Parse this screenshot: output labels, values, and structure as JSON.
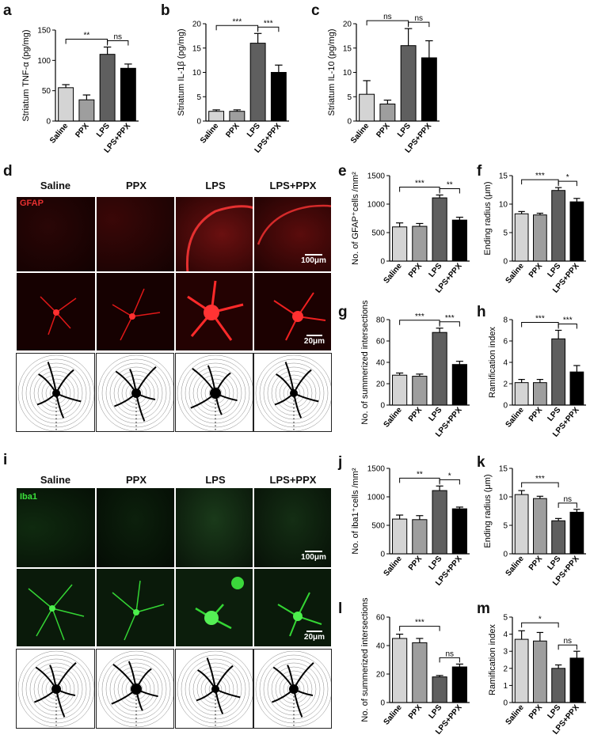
{
  "panel_labels": {
    "a": "a",
    "b": "b",
    "c": "c",
    "d": "d",
    "e": "e",
    "f": "f",
    "g": "g",
    "h": "h",
    "i": "i",
    "j": "j",
    "k": "k",
    "l": "l",
    "m": "m"
  },
  "group_labels": [
    "Saline",
    "PPX",
    "LPS",
    "LPS+PPX"
  ],
  "image_panels": {
    "d": {
      "columns": [
        "Saline",
        "PPX",
        "LPS",
        "LPS+PPX"
      ],
      "stain": "GFAP",
      "scale_top": "100μm",
      "scale_mid": "20μm"
    },
    "i": {
      "columns": [
        "Saline",
        "PPX",
        "LPS",
        "LPS+PPX"
      ],
      "stain": "Iba1",
      "scale_top": "100μm",
      "scale_mid": "20μm"
    }
  },
  "colors": {
    "saline": "#d4d4d4",
    "ppx": "#9e9e9e",
    "lps": "#5f5f5f",
    "lpsppx": "#000000",
    "gfap": "#e01818",
    "iba1": "#2fd12f"
  },
  "chart_data": [
    {
      "id": "a",
      "type": "bar",
      "categories": [
        "Saline",
        "PPX",
        "LPS",
        "LPS+PPX"
      ],
      "values": [
        55,
        35,
        110,
        87
      ],
      "errors": [
        5,
        8,
        12,
        7
      ],
      "ylabel": "Striatum TNF-α (pg/mg)",
      "ylim": [
        0,
        150
      ],
      "yticks": [
        0,
        50,
        100,
        150
      ],
      "sig": [
        {
          "from": 0,
          "to": 2,
          "label": "**"
        },
        {
          "from": 2,
          "to": 3,
          "label": "ns"
        }
      ]
    },
    {
      "id": "b",
      "type": "bar",
      "categories": [
        "Saline",
        "PPX",
        "LPS",
        "LPS+PPX"
      ],
      "values": [
        2,
        2,
        16,
        10
      ],
      "errors": [
        0.3,
        0.3,
        2,
        1.5
      ],
      "ylabel": "Striatum IL-1β (pg/mg)",
      "ylim": [
        0,
        20
      ],
      "yticks": [
        0,
        5,
        10,
        15,
        20
      ],
      "sig": [
        {
          "from": 0,
          "to": 2,
          "label": "***"
        },
        {
          "from": 2,
          "to": 3,
          "label": "***"
        }
      ]
    },
    {
      "id": "c",
      "type": "bar",
      "categories": [
        "Saline",
        "PPX",
        "LPS",
        "LPS+PPX"
      ],
      "values": [
        5.5,
        3.5,
        15.5,
        13
      ],
      "errors": [
        2.8,
        0.8,
        3.5,
        3.5
      ],
      "ylabel": "Striatum IL-10 (pg/mg)",
      "ylim": [
        0,
        20
      ],
      "yticks": [
        0,
        5,
        10,
        15,
        20
      ],
      "sig": [
        {
          "from": 0,
          "to": 2,
          "label": "ns"
        },
        {
          "from": 2,
          "to": 3,
          "label": "ns"
        }
      ]
    },
    {
      "id": "e",
      "type": "bar",
      "categories": [
        "Saline",
        "PPX",
        "LPS",
        "LPS+PPX"
      ],
      "values": [
        600,
        610,
        1110,
        720
      ],
      "errors": [
        70,
        50,
        50,
        50
      ],
      "ylabel": "No. of GFAP⁺cells /mm²",
      "ylim": [
        0,
        1500
      ],
      "yticks": [
        0,
        500,
        1000,
        1500
      ],
      "sig": [
        {
          "from": 0,
          "to": 2,
          "label": "***"
        },
        {
          "from": 2,
          "to": 3,
          "label": "**"
        }
      ]
    },
    {
      "id": "f",
      "type": "bar",
      "categories": [
        "Saline",
        "PPX",
        "LPS",
        "LPS+PPX"
      ],
      "values": [
        8.3,
        8.1,
        12.4,
        10.4
      ],
      "errors": [
        0.4,
        0.3,
        0.5,
        0.6
      ],
      "ylabel": "Ending radius (μm)",
      "ylim": [
        0,
        15
      ],
      "yticks": [
        0,
        5,
        10,
        15
      ],
      "sig": [
        {
          "from": 0,
          "to": 2,
          "label": "***"
        },
        {
          "from": 2,
          "to": 3,
          "label": "*"
        }
      ]
    },
    {
      "id": "g",
      "type": "bar",
      "categories": [
        "Saline",
        "PPX",
        "LPS",
        "LPS+PPX"
      ],
      "values": [
        28,
        27,
        68,
        38
      ],
      "errors": [
        2,
        2,
        4,
        3
      ],
      "ylabel": "No. of summerized intersections",
      "ylim": [
        0,
        80
      ],
      "yticks": [
        0,
        20,
        40,
        60,
        80
      ],
      "sig": [
        {
          "from": 0,
          "to": 2,
          "label": "***"
        },
        {
          "from": 2,
          "to": 3,
          "label": "***"
        }
      ]
    },
    {
      "id": "h",
      "type": "bar",
      "categories": [
        "Saline",
        "PPX",
        "LPS",
        "LPS+PPX"
      ],
      "values": [
        2.1,
        2.1,
        6.2,
        3.1
      ],
      "errors": [
        0.3,
        0.3,
        0.8,
        0.6
      ],
      "ylabel": "Ramification index",
      "ylim": [
        0,
        8
      ],
      "yticks": [
        0,
        2,
        4,
        6,
        8
      ],
      "sig": [
        {
          "from": 0,
          "to": 2,
          "label": "***"
        },
        {
          "from": 2,
          "to": 3,
          "label": "***"
        }
      ]
    },
    {
      "id": "j",
      "type": "bar",
      "categories": [
        "Saline",
        "PPX",
        "LPS",
        "LPS+PPX"
      ],
      "values": [
        610,
        600,
        1110,
        790
      ],
      "errors": [
        70,
        70,
        80,
        30
      ],
      "ylabel": "No. of iba1⁺cells /mm²",
      "ylim": [
        0,
        1500
      ],
      "yticks": [
        0,
        500,
        1000,
        1500
      ],
      "sig": [
        {
          "from": 0,
          "to": 2,
          "label": "**"
        },
        {
          "from": 2,
          "to": 3,
          "label": "*"
        }
      ]
    },
    {
      "id": "k",
      "type": "bar",
      "categories": [
        "Saline",
        "PPX",
        "LPS",
        "LPS+PPX"
      ],
      "values": [
        10.4,
        9.7,
        5.8,
        7.3
      ],
      "errors": [
        0.7,
        0.4,
        0.4,
        0.5
      ],
      "ylabel": "Ending radius (μm)",
      "ylim": [
        0,
        15
      ],
      "yticks": [
        0,
        5,
        10,
        15
      ],
      "sig": [
        {
          "from": 0,
          "to": 2,
          "label": "***"
        },
        {
          "from": 2,
          "to": 3,
          "label": "ns"
        }
      ]
    },
    {
      "id": "l",
      "type": "bar",
      "categories": [
        "Saline",
        "PPX",
        "LPS",
        "LPS+PPX"
      ],
      "values": [
        45,
        42,
        18,
        25
      ],
      "errors": [
        3,
        3,
        1,
        2
      ],
      "ylabel": "No. of summerized intersections",
      "ylim": [
        0,
        60
      ],
      "yticks": [
        0,
        20,
        40,
        60
      ],
      "sig": [
        {
          "from": 0,
          "to": 2,
          "label": "***"
        },
        {
          "from": 2,
          "to": 3,
          "label": "ns"
        }
      ]
    },
    {
      "id": "m",
      "type": "bar",
      "categories": [
        "Saline",
        "PPX",
        "LPS",
        "LPS+PPX"
      ],
      "values": [
        3.7,
        3.6,
        2.0,
        2.6
      ],
      "errors": [
        0.5,
        0.5,
        0.2,
        0.4
      ],
      "ylabel": "Ramification index",
      "ylim": [
        0,
        5
      ],
      "yticks": [
        0,
        1,
        2,
        3,
        4,
        5
      ],
      "sig": [
        {
          "from": 0,
          "to": 2,
          "label": "*"
        },
        {
          "from": 2,
          "to": 3,
          "label": "ns"
        }
      ]
    }
  ]
}
